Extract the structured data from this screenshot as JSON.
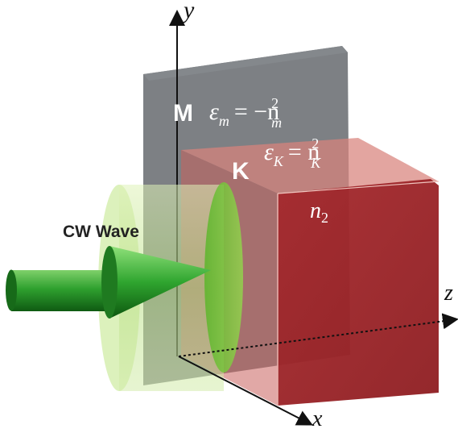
{
  "axes": {
    "y_label": "y",
    "z_label": "z",
    "x_label": "x"
  },
  "medium_m": {
    "label": "M",
    "eps_symbol": "ε",
    "eps_sub": "m",
    "eps_rhs": "= −n",
    "rhs_sup": "2",
    "rhs_sub": "m",
    "color": "#6b6e73"
  },
  "medium_k": {
    "label": "K",
    "eps_symbol": "ε",
    "eps_sub": "K",
    "eps_rhs": "=  n",
    "rhs_sup": "2",
    "rhs_sub": "K",
    "color": "#a3272b"
  },
  "region_n2": {
    "symbol": "n",
    "sub": "2"
  },
  "wave": {
    "label": "CW Wave",
    "color": "#2e9b2e",
    "beam_color": "#c9e79a"
  }
}
